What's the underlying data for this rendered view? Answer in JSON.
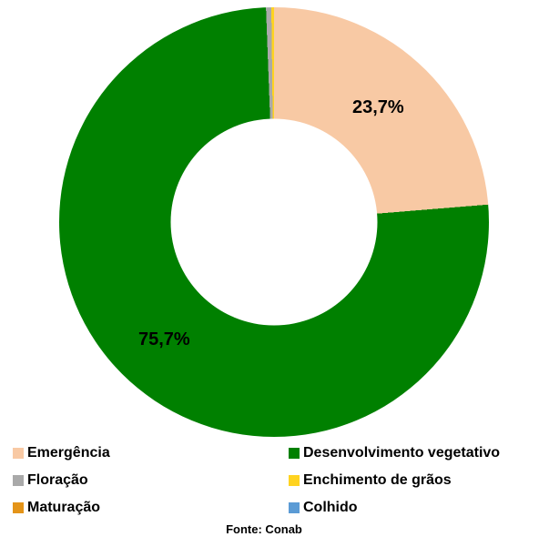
{
  "chart_data": {
    "type": "pie",
    "subtype": "donut",
    "title": "",
    "legend_position": "bottom",
    "source": "Fonte: Conab",
    "decimal_separator": ",",
    "series": [
      {
        "name": "Emergência",
        "value": 23.7,
        "color": "#F8C9A4",
        "data_label": "23,7%"
      },
      {
        "name": "Desenvolvimento vegetativo",
        "value": 75.7,
        "color": "#008000",
        "data_label": "75,7%"
      },
      {
        "name": "Floração",
        "value": 0.4,
        "color": "#A9A9A9",
        "data_label": ""
      },
      {
        "name": "Enchimento de grãos",
        "value": 0.2,
        "color": "#FFD320",
        "data_label": ""
      },
      {
        "name": "Maturação",
        "value": 0.0,
        "color": "#E49419",
        "data_label": ""
      },
      {
        "name": "Colhido",
        "value": 0.0,
        "color": "#5B9BD5",
        "data_label": ""
      }
    ],
    "start_angle_deg": 0,
    "direction": "clockwise",
    "inner_radius_ratio": 0.48
  },
  "labels": {
    "emergencia": "23,7%",
    "desenvolvimento": "75,7%"
  },
  "legend": {
    "items": [
      {
        "label": "Emergência",
        "color": "#F8C9A4"
      },
      {
        "label": "Desenvolvimento vegetativo",
        "color": "#008000"
      },
      {
        "label": "Floração",
        "color": "#A9A9A9"
      },
      {
        "label": "Enchimento de grãos",
        "color": "#FFD320"
      },
      {
        "label": "Maturação",
        "color": "#E49419"
      },
      {
        "label": "Colhido",
        "color": "#5B9BD5"
      }
    ]
  },
  "source": {
    "text": "Fonte: Conab"
  }
}
